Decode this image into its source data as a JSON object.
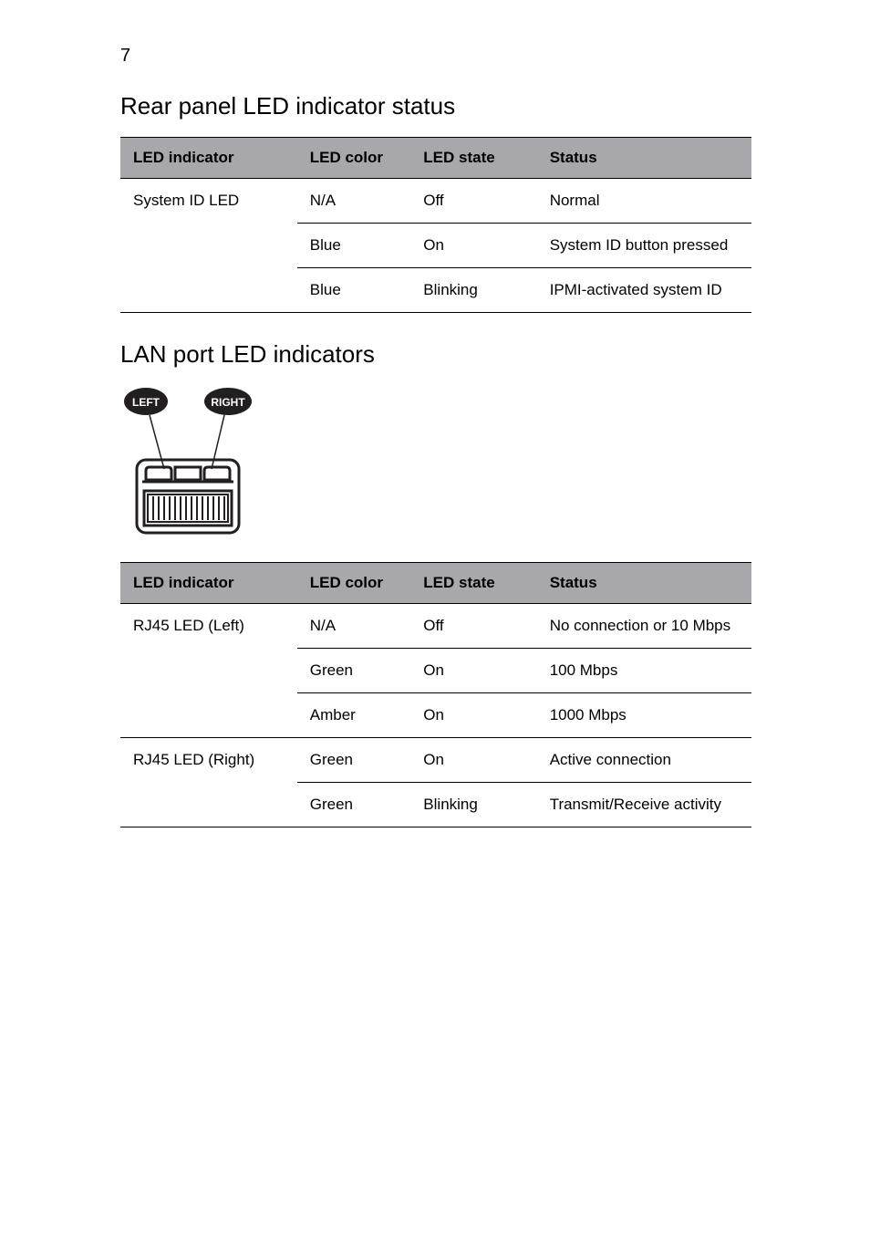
{
  "page_number": "7",
  "section1": {
    "title": "Rear panel LED indicator status",
    "table": {
      "header_bg": "#a8a7ac",
      "columns": [
        "LED indicator",
        "LED color",
        "LED state",
        "Status"
      ],
      "rows": [
        {
          "indicator": "System ID LED",
          "color": "N/A",
          "state": "Off",
          "status": "Normal",
          "first_of_group": true,
          "last_of_group": false
        },
        {
          "indicator": "",
          "color": "Blue",
          "state": "On",
          "status": "System ID button pressed",
          "first_of_group": false,
          "last_of_group": false
        },
        {
          "indicator": "",
          "color": "Blue",
          "state": "Blinking",
          "status": "IPMI-activated system ID",
          "first_of_group": false,
          "last_of_group": true
        }
      ]
    }
  },
  "section2": {
    "title": "LAN port LED indicators",
    "diagram": {
      "left_label": "LEFT",
      "right_label": "RIGHT",
      "bubble_fill": "#231f20",
      "bubble_text": "#ffffff",
      "stroke": "#231f20"
    },
    "table": {
      "header_bg": "#a8a7ac",
      "columns": [
        "LED indicator",
        "LED color",
        "LED state",
        "Status"
      ],
      "rows": [
        {
          "indicator": "RJ45 LED (Left)",
          "color": "N/A",
          "state": "Off",
          "status": "No connection or 10 Mbps",
          "first_of_group": true,
          "last_of_group": false
        },
        {
          "indicator": "",
          "color": "Green",
          "state": "On",
          "status": "100 Mbps",
          "first_of_group": false,
          "last_of_group": false
        },
        {
          "indicator": "",
          "color": "Amber",
          "state": "On",
          "status": "1000 Mbps",
          "first_of_group": false,
          "last_of_group": true
        },
        {
          "indicator": "RJ45 LED (Right)",
          "color": "Green",
          "state": "On",
          "status": "Active connection",
          "first_of_group": true,
          "last_of_group": false
        },
        {
          "indicator": "",
          "color": "Green",
          "state": "Blinking",
          "status": "Transmit/Receive activity",
          "first_of_group": false,
          "last_of_group": true
        }
      ]
    }
  },
  "style": {
    "body_bg": "#ffffff",
    "text_color": "#000000",
    "border_color": "#000000",
    "title_fontsize_pt": 20,
    "body_fontsize_pt": 13,
    "header_fontsize_pt": 13
  }
}
